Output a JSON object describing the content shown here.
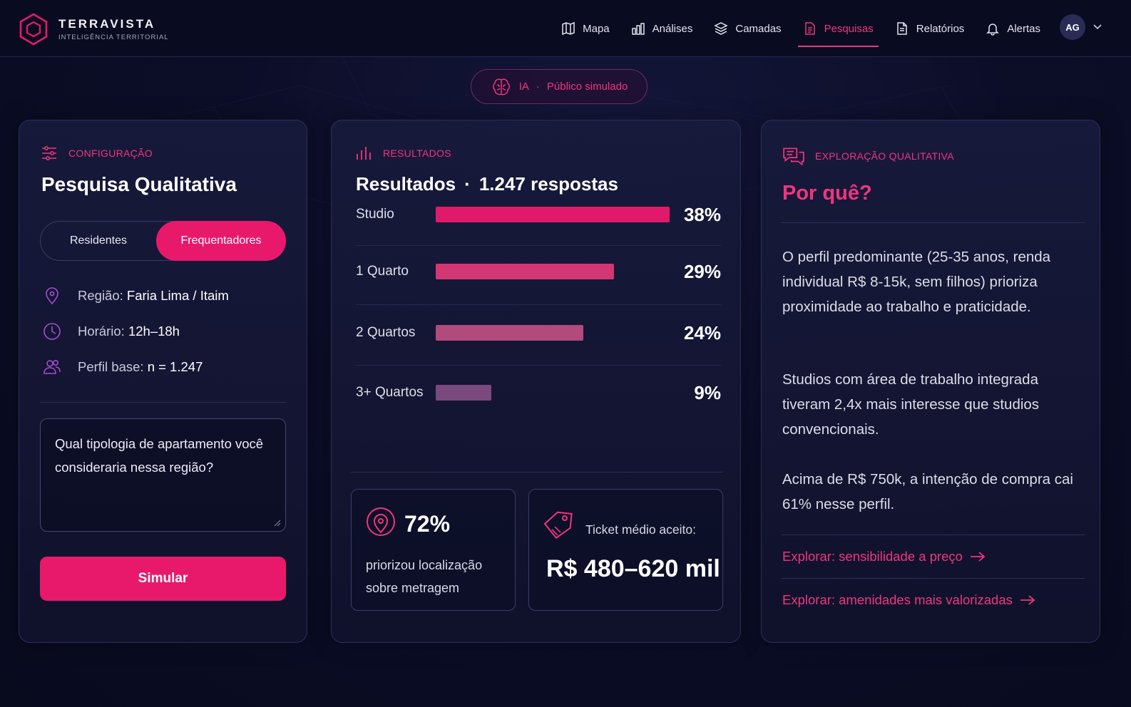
{
  "brand": {
    "name": "TERRAVISTA",
    "tagline": "INTELIGÊNCIA TERRITORIAL"
  },
  "nav": {
    "items": [
      {
        "label": "Mapa",
        "icon": "map-icon"
      },
      {
        "label": "Análises",
        "icon": "analytics-icon"
      },
      {
        "label": "Camadas",
        "icon": "layers-icon"
      },
      {
        "label": "Pesquisas",
        "icon": "document-icon",
        "active": true
      },
      {
        "label": "Relatórios",
        "icon": "report-icon"
      },
      {
        "label": "Alertas",
        "icon": "bell-icon"
      }
    ],
    "avatar": "AG"
  },
  "ai_pill": {
    "label": "IA",
    "separator": "·",
    "text": "Público simulado"
  },
  "config": {
    "section": "CONFIGURAÇÃO",
    "title": "Pesquisa Qualitativa",
    "segments": [
      "Residentes",
      "Frequentadores"
    ],
    "selected_segment": "Frequentadores",
    "region_label": "Região:",
    "region_value": "Faria Lima / Itaim",
    "hours_label": "Horário:",
    "hours_value": "12h–18h",
    "profile_label": "Perfil base:",
    "profile_value": "n = 1.247",
    "question": "Qual tipologia de apartamento você consideraria nessa região?",
    "button": "Simular"
  },
  "results": {
    "section": "RESULTADOS",
    "title": "Resultados",
    "dot": "·",
    "responses": "1.247 respostas",
    "stat_location": {
      "value": "72%",
      "text_line1": "priorizou localização",
      "text_line2": "sobre metragem"
    },
    "stat_ticket": {
      "label": "Ticket médio aceito:",
      "value": "R$ 480–620 mil"
    }
  },
  "chart_data": {
    "type": "bar",
    "orientation": "horizontal",
    "categories": [
      "Studio",
      "1 Quarto",
      "2 Quartos",
      "3+ Quartos"
    ],
    "values": [
      38,
      29,
      24,
      9
    ],
    "labels": [
      "38%",
      "29%",
      "24%",
      "9%"
    ],
    "colors": [
      "#e01a6a",
      "#d23673",
      "#b04b7c",
      "#7a4a7e"
    ],
    "title": "",
    "xlabel": "",
    "ylabel": ""
  },
  "qualitative": {
    "section": "EXPLORAÇÃO QUALITATIVA",
    "title": "Por quê?",
    "paragraphs": [
      "O perfil predominante (25-35 anos, renda individual R$ 8-15k, sem filhos) prioriza proximidade ao trabalho e praticidade.",
      "Studios com área de trabalho integrada tiveram 2,4x mais interesse que studios convencionais.",
      "Acima de R$ 750k, a intenção de compra cai 61% nesse perfil."
    ],
    "links": [
      "Explorar: sensibilidade a preço",
      "Explorar: amenidades mais valorizadas"
    ]
  },
  "colors": {
    "accent": "#e8196b",
    "accent_text": "#f0357e",
    "background": "#0a0c24",
    "card": "#15173a"
  }
}
